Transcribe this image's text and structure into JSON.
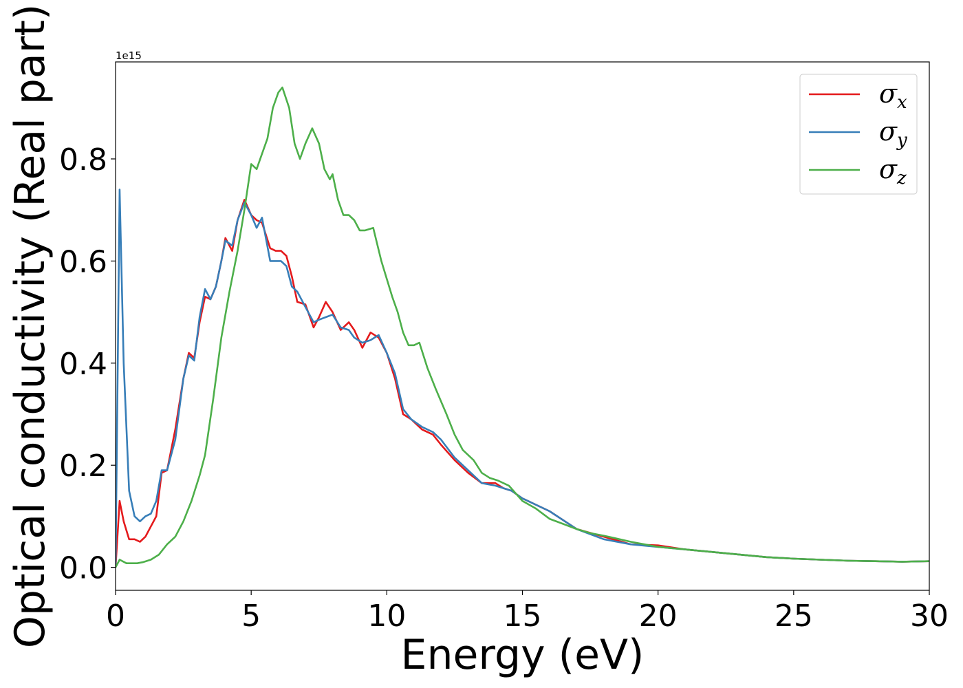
{
  "chart_data": {
    "type": "line",
    "xlabel": "Energy (eV)",
    "ylabel": "Optical conductivity (Real part)",
    "y_offset_text": "1e15",
    "xlim": [
      0,
      30
    ],
    "ylim": [
      -0.045,
      0.99
    ],
    "xticks": [
      0,
      5,
      10,
      15,
      20,
      25,
      30
    ],
    "yticks": [
      0.0,
      0.2,
      0.4,
      0.6,
      0.8
    ],
    "x_tick_labels": [
      "0",
      "5",
      "10",
      "15",
      "20",
      "25",
      "30"
    ],
    "y_tick_labels": [
      "0.0",
      "0.2",
      "0.4",
      "0.6",
      "0.8"
    ],
    "grid": false,
    "legend_position": "top-right",
    "series": [
      {
        "name": "σx",
        "symbol": "σ",
        "subscript": "x",
        "color": "#e41a1c",
        "points": [
          [
            0,
            0.0
          ],
          [
            0.15,
            0.13
          ],
          [
            0.3,
            0.09
          ],
          [
            0.5,
            0.055
          ],
          [
            0.7,
            0.055
          ],
          [
            0.9,
            0.05
          ],
          [
            1.1,
            0.06
          ],
          [
            1.3,
            0.08
          ],
          [
            1.5,
            0.1
          ],
          [
            1.7,
            0.185
          ],
          [
            1.9,
            0.19
          ],
          [
            2.2,
            0.27
          ],
          [
            2.5,
            0.37
          ],
          [
            2.7,
            0.42
          ],
          [
            2.9,
            0.41
          ],
          [
            3.1,
            0.48
          ],
          [
            3.3,
            0.53
          ],
          [
            3.5,
            0.525
          ],
          [
            3.7,
            0.55
          ],
          [
            3.9,
            0.6
          ],
          [
            4.05,
            0.645
          ],
          [
            4.3,
            0.62
          ],
          [
            4.5,
            0.68
          ],
          [
            4.75,
            0.72
          ],
          [
            5.0,
            0.69
          ],
          [
            5.2,
            0.68
          ],
          [
            5.4,
            0.675
          ],
          [
            5.7,
            0.625
          ],
          [
            5.9,
            0.62
          ],
          [
            6.1,
            0.62
          ],
          [
            6.3,
            0.61
          ],
          [
            6.5,
            0.57
          ],
          [
            6.7,
            0.52
          ],
          [
            7.0,
            0.515
          ],
          [
            7.3,
            0.47
          ],
          [
            7.5,
            0.49
          ],
          [
            7.75,
            0.52
          ],
          [
            8.0,
            0.5
          ],
          [
            8.3,
            0.465
          ],
          [
            8.6,
            0.48
          ],
          [
            8.8,
            0.465
          ],
          [
            9.1,
            0.43
          ],
          [
            9.4,
            0.46
          ],
          [
            9.7,
            0.45
          ],
          [
            10.0,
            0.42
          ],
          [
            10.3,
            0.37
          ],
          [
            10.6,
            0.3
          ],
          [
            10.9,
            0.29
          ],
          [
            11.3,
            0.27
          ],
          [
            11.7,
            0.26
          ],
          [
            12.0,
            0.24
          ],
          [
            12.5,
            0.21
          ],
          [
            13.0,
            0.185
          ],
          [
            13.5,
            0.165
          ],
          [
            14.0,
            0.165
          ],
          [
            14.3,
            0.155
          ],
          [
            14.6,
            0.15
          ],
          [
            15.0,
            0.135
          ],
          [
            16.0,
            0.11
          ],
          [
            17.0,
            0.075
          ],
          [
            18.0,
            0.06
          ],
          [
            19.0,
            0.045
          ],
          [
            20.0,
            0.043
          ],
          [
            21.0,
            0.035
          ],
          [
            22.0,
            0.03
          ],
          [
            23.0,
            0.025
          ],
          [
            24.0,
            0.02
          ],
          [
            25.0,
            0.017
          ],
          [
            26.0,
            0.015
          ],
          [
            27.0,
            0.013
          ],
          [
            28.0,
            0.012
          ],
          [
            29.0,
            0.011
          ],
          [
            30.0,
            0.012
          ]
        ]
      },
      {
        "name": "σy",
        "symbol": "σ",
        "subscript": "y",
        "color": "#377eb8",
        "points": [
          [
            0,
            0.0
          ],
          [
            0.15,
            0.74
          ],
          [
            0.3,
            0.4
          ],
          [
            0.5,
            0.15
          ],
          [
            0.7,
            0.1
          ],
          [
            0.9,
            0.09
          ],
          [
            1.1,
            0.1
          ],
          [
            1.3,
            0.105
          ],
          [
            1.5,
            0.13
          ],
          [
            1.7,
            0.19
          ],
          [
            1.9,
            0.19
          ],
          [
            2.2,
            0.25
          ],
          [
            2.5,
            0.37
          ],
          [
            2.7,
            0.415
          ],
          [
            2.9,
            0.405
          ],
          [
            3.1,
            0.49
          ],
          [
            3.3,
            0.545
          ],
          [
            3.5,
            0.525
          ],
          [
            3.7,
            0.55
          ],
          [
            3.9,
            0.6
          ],
          [
            4.05,
            0.64
          ],
          [
            4.3,
            0.63
          ],
          [
            4.5,
            0.68
          ],
          [
            4.75,
            0.715
          ],
          [
            5.0,
            0.69
          ],
          [
            5.2,
            0.665
          ],
          [
            5.4,
            0.685
          ],
          [
            5.7,
            0.6
          ],
          [
            5.9,
            0.6
          ],
          [
            6.1,
            0.6
          ],
          [
            6.3,
            0.59
          ],
          [
            6.5,
            0.55
          ],
          [
            6.7,
            0.54
          ],
          [
            7.0,
            0.51
          ],
          [
            7.3,
            0.48
          ],
          [
            7.5,
            0.485
          ],
          [
            7.75,
            0.49
          ],
          [
            8.0,
            0.495
          ],
          [
            8.3,
            0.47
          ],
          [
            8.6,
            0.465
          ],
          [
            8.8,
            0.45
          ],
          [
            9.1,
            0.44
          ],
          [
            9.4,
            0.445
          ],
          [
            9.7,
            0.455
          ],
          [
            10.0,
            0.42
          ],
          [
            10.3,
            0.38
          ],
          [
            10.6,
            0.31
          ],
          [
            10.9,
            0.29
          ],
          [
            11.3,
            0.275
          ],
          [
            11.7,
            0.265
          ],
          [
            12.0,
            0.25
          ],
          [
            12.5,
            0.215
          ],
          [
            13.0,
            0.19
          ],
          [
            13.5,
            0.165
          ],
          [
            14.0,
            0.16
          ],
          [
            14.3,
            0.155
          ],
          [
            14.6,
            0.15
          ],
          [
            15.0,
            0.135
          ],
          [
            16.0,
            0.11
          ],
          [
            17.0,
            0.075
          ],
          [
            18.0,
            0.055
          ],
          [
            19.0,
            0.045
          ],
          [
            20.0,
            0.04
          ],
          [
            21.0,
            0.035
          ],
          [
            22.0,
            0.03
          ],
          [
            23.0,
            0.025
          ],
          [
            24.0,
            0.02
          ],
          [
            25.0,
            0.017
          ],
          [
            26.0,
            0.015
          ],
          [
            27.0,
            0.013
          ],
          [
            28.0,
            0.012
          ],
          [
            29.0,
            0.011
          ],
          [
            30.0,
            0.012
          ]
        ]
      },
      {
        "name": "σz",
        "symbol": "σ",
        "subscript": "z",
        "color": "#4daf4a",
        "points": [
          [
            0,
            0.0
          ],
          [
            0.15,
            0.015
          ],
          [
            0.4,
            0.008
          ],
          [
            0.8,
            0.008
          ],
          [
            1.0,
            0.01
          ],
          [
            1.3,
            0.015
          ],
          [
            1.6,
            0.025
          ],
          [
            1.9,
            0.045
          ],
          [
            2.2,
            0.06
          ],
          [
            2.5,
            0.09
          ],
          [
            2.8,
            0.13
          ],
          [
            3.1,
            0.18
          ],
          [
            3.3,
            0.22
          ],
          [
            3.6,
            0.33
          ],
          [
            3.9,
            0.45
          ],
          [
            4.2,
            0.54
          ],
          [
            4.5,
            0.62
          ],
          [
            4.75,
            0.7
          ],
          [
            5.0,
            0.79
          ],
          [
            5.2,
            0.78
          ],
          [
            5.4,
            0.81
          ],
          [
            5.6,
            0.84
          ],
          [
            5.8,
            0.9
          ],
          [
            6.0,
            0.93
          ],
          [
            6.15,
            0.94
          ],
          [
            6.4,
            0.9
          ],
          [
            6.6,
            0.83
          ],
          [
            6.8,
            0.8
          ],
          [
            7.0,
            0.83
          ],
          [
            7.25,
            0.86
          ],
          [
            7.5,
            0.83
          ],
          [
            7.7,
            0.78
          ],
          [
            7.9,
            0.76
          ],
          [
            8.0,
            0.77
          ],
          [
            8.2,
            0.72
          ],
          [
            8.4,
            0.69
          ],
          [
            8.6,
            0.69
          ],
          [
            8.8,
            0.68
          ],
          [
            9.0,
            0.66
          ],
          [
            9.2,
            0.66
          ],
          [
            9.5,
            0.665
          ],
          [
            9.8,
            0.6
          ],
          [
            10.0,
            0.565
          ],
          [
            10.2,
            0.53
          ],
          [
            10.4,
            0.5
          ],
          [
            10.6,
            0.46
          ],
          [
            10.8,
            0.435
          ],
          [
            11.0,
            0.435
          ],
          [
            11.2,
            0.44
          ],
          [
            11.5,
            0.39
          ],
          [
            11.8,
            0.35
          ],
          [
            12.2,
            0.3
          ],
          [
            12.5,
            0.26
          ],
          [
            12.8,
            0.23
          ],
          [
            13.2,
            0.21
          ],
          [
            13.5,
            0.185
          ],
          [
            13.8,
            0.175
          ],
          [
            14.1,
            0.17
          ],
          [
            14.5,
            0.16
          ],
          [
            15.0,
            0.13
          ],
          [
            15.5,
            0.115
          ],
          [
            16.0,
            0.095
          ],
          [
            16.5,
            0.085
          ],
          [
            17.0,
            0.075
          ],
          [
            17.5,
            0.067
          ],
          [
            18.0,
            0.062
          ],
          [
            19.0,
            0.05
          ],
          [
            20.0,
            0.04
          ],
          [
            21.0,
            0.035
          ],
          [
            22.0,
            0.03
          ],
          [
            23.0,
            0.025
          ],
          [
            24.0,
            0.02
          ],
          [
            25.0,
            0.017
          ],
          [
            26.0,
            0.015
          ],
          [
            27.0,
            0.013
          ],
          [
            28.0,
            0.012
          ],
          [
            29.0,
            0.011
          ],
          [
            30.0,
            0.012
          ]
        ]
      }
    ]
  }
}
